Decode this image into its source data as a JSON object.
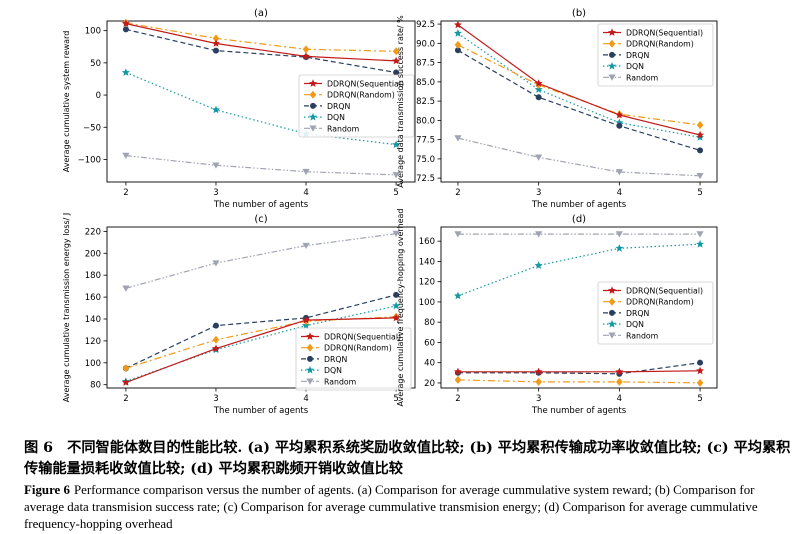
{
  "colors": {
    "DDRQN(Sequential)": "#c21a1a",
    "DDRQN(Random)": "#f29a18",
    "DRQN": "#2a3f5f",
    "DQN": "#159aa4",
    "Random": "#a0a4b2"
  },
  "chart_data": [
    {
      "panel": "(a)",
      "type": "line",
      "title": "(a)",
      "xlabel": "The number of agents",
      "ylabel": "Average cumulative system reward",
      "x": [
        2,
        3,
        4,
        5
      ],
      "xticks": [
        "2",
        "3",
        "4",
        "5"
      ],
      "ylim": [
        -135,
        115
      ],
      "yticks": [
        -100,
        -50,
        0,
        50,
        100
      ],
      "ytick_labels": [
        "−100",
        "−50",
        "0",
        "50",
        "100"
      ],
      "legend": "center-right",
      "series": [
        {
          "name": "DDRQN(Sequential)",
          "values": [
            111,
            80,
            60,
            53
          ]
        },
        {
          "name": "DDRQN(Random)",
          "values": [
            112,
            88,
            71,
            68
          ]
        },
        {
          "name": "DRQN",
          "values": [
            102,
            69,
            59,
            35
          ]
        },
        {
          "name": "DQN",
          "values": [
            35,
            -23,
            -60,
            -77
          ]
        },
        {
          "name": "Random",
          "values": [
            -94,
            -109,
            -119,
            -124
          ]
        }
      ]
    },
    {
      "panel": "(b)",
      "type": "line",
      "title": "(b)",
      "xlabel": "The number of agents",
      "ylabel": "Average data transmission success rate/ %",
      "x": [
        2,
        3,
        4,
        5
      ],
      "xticks": [
        "2",
        "3",
        "4",
        "5"
      ],
      "ylim": [
        72.0,
        92.9
      ],
      "yticks": [
        72.5,
        75.0,
        77.5,
        80.0,
        82.5,
        85.0,
        87.5,
        90.0,
        92.5
      ],
      "ytick_labels": [
        "72.5",
        "75.0",
        "77.5",
        "80.0",
        "82.5",
        "85.0",
        "87.5",
        "90.0",
        "92.5"
      ],
      "legend": "top-right",
      "series": [
        {
          "name": "DDRQN(Sequential)",
          "values": [
            92.4,
            84.8,
            80.7,
            78.1
          ]
        },
        {
          "name": "DDRQN(Random)",
          "values": [
            89.8,
            84.6,
            80.8,
            79.4
          ]
        },
        {
          "name": "DRQN",
          "values": [
            89.1,
            83.0,
            79.3,
            76.1
          ]
        },
        {
          "name": "DQN",
          "values": [
            91.3,
            84.0,
            79.7,
            77.8
          ]
        },
        {
          "name": "Random",
          "values": [
            77.7,
            75.2,
            73.3,
            72.8
          ]
        }
      ]
    },
    {
      "panel": "(c)",
      "type": "line",
      "title": "(c)",
      "xlabel": "The number of agents",
      "ylabel": "Average cumulative transmission energy loss/ J",
      "x": [
        2,
        3,
        4,
        5
      ],
      "xticks": [
        "2",
        "3",
        "4",
        "5"
      ],
      "ylim": [
        77,
        224
      ],
      "yticks": [
        80,
        100,
        120,
        140,
        160,
        180,
        200,
        220
      ],
      "ytick_labels": [
        "80",
        "100",
        "120",
        "140",
        "160",
        "180",
        "200",
        "220"
      ],
      "legend": "bottom-right",
      "series": [
        {
          "name": "DDRQN(Sequential)",
          "values": [
            82,
            113,
            139,
            141
          ]
        },
        {
          "name": "DDRQN(Random)",
          "values": [
            95,
            121,
            138,
            142
          ]
        },
        {
          "name": "DRQN",
          "values": [
            95,
            134,
            141,
            162
          ]
        },
        {
          "name": "DQN",
          "values": [
            83,
            112,
            134,
            152
          ]
        },
        {
          "name": "Random",
          "values": [
            168,
            191,
            207,
            218
          ]
        }
      ]
    },
    {
      "panel": "(d)",
      "type": "line",
      "title": "(d)",
      "xlabel": "The number of agents",
      "ylabel": "Average cumulative frequency-hopping overhead",
      "x": [
        2,
        3,
        4,
        5
      ],
      "xticks": [
        "2",
        "3",
        "4",
        "5"
      ],
      "ylim": [
        15,
        174
      ],
      "yticks": [
        20,
        40,
        60,
        80,
        100,
        120,
        140,
        160
      ],
      "ytick_labels": [
        "20",
        "40",
        "60",
        "80",
        "100",
        "120",
        "140",
        "160"
      ],
      "legend": "center-right",
      "series": [
        {
          "name": "DDRQN(Sequential)",
          "values": [
            31,
            31,
            31,
            32
          ]
        },
        {
          "name": "DDRQN(Random)",
          "values": [
            23,
            21,
            21,
            20
          ]
        },
        {
          "name": "DRQN",
          "values": [
            30,
            30,
            29,
            40
          ]
        },
        {
          "name": "DQN",
          "values": [
            106,
            136,
            153,
            157
          ]
        },
        {
          "name": "Random",
          "values": [
            167,
            167,
            167,
            167
          ]
        }
      ]
    }
  ],
  "caption": {
    "zh": "图 6　不同智能体数目的性能比较. (a) 平均累积系统奖励收敛值比较; (b) 平均累积传输成功率收敛值比较; (c) 平均累积传输能量损耗收敛值比较; (d) 平均累积跳频开销收敛值比较",
    "en_label": "Figure 6",
    "en_text": "Performance comparison versus the number of agents. (a) Comparison for average cummulative system reward; (b) Comparison for average data transmision success rate; (c) Comparison for average cummulative transmision energy; (d) Comparison for average cummulative frequency-hopping overhead"
  }
}
